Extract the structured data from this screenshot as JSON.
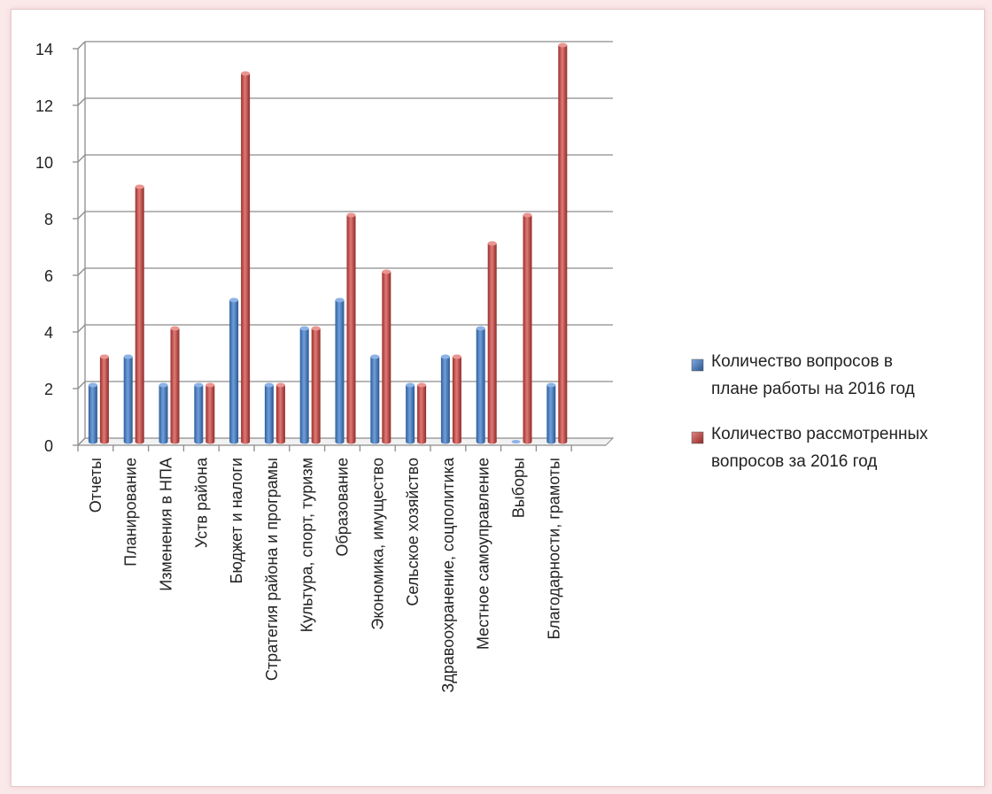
{
  "chart_data": {
    "type": "bar",
    "bar_style": "3d-cylinder",
    "categories": [
      "Отчеты",
      "Планирование",
      "Изменения в НПА",
      "Уств района",
      "Бюджет и налоги",
      "Стратегия района и програмы",
      "Культура, спорт, туризм",
      "Образование",
      "Экономика, имущество",
      "Сельское хозяйство",
      "Здравоохранение, соцполитика",
      "Местное самоуправление",
      "Выборы",
      "Благодарности, грамоты"
    ],
    "series": [
      {
        "name": "Количество вопросов в плане работы на 2016 год",
        "color": "#4a7ebb",
        "values": [
          2,
          3,
          2,
          2,
          5,
          2,
          4,
          5,
          3,
          2,
          3,
          4,
          0,
          2
        ]
      },
      {
        "name": "Количество рассмотренных вопросов за 2016 год",
        "color": "#c0504d",
        "values": [
          3,
          9,
          4,
          2,
          13,
          2,
          4,
          8,
          6,
          2,
          3,
          7,
          8,
          14
        ]
      }
    ],
    "ylim": [
      0,
      14
    ],
    "yticks": [
      0,
      2,
      4,
      6,
      8,
      10,
      12,
      14
    ],
    "grid": true,
    "legend": "right",
    "title": "",
    "xlabel": "",
    "ylabel": ""
  }
}
